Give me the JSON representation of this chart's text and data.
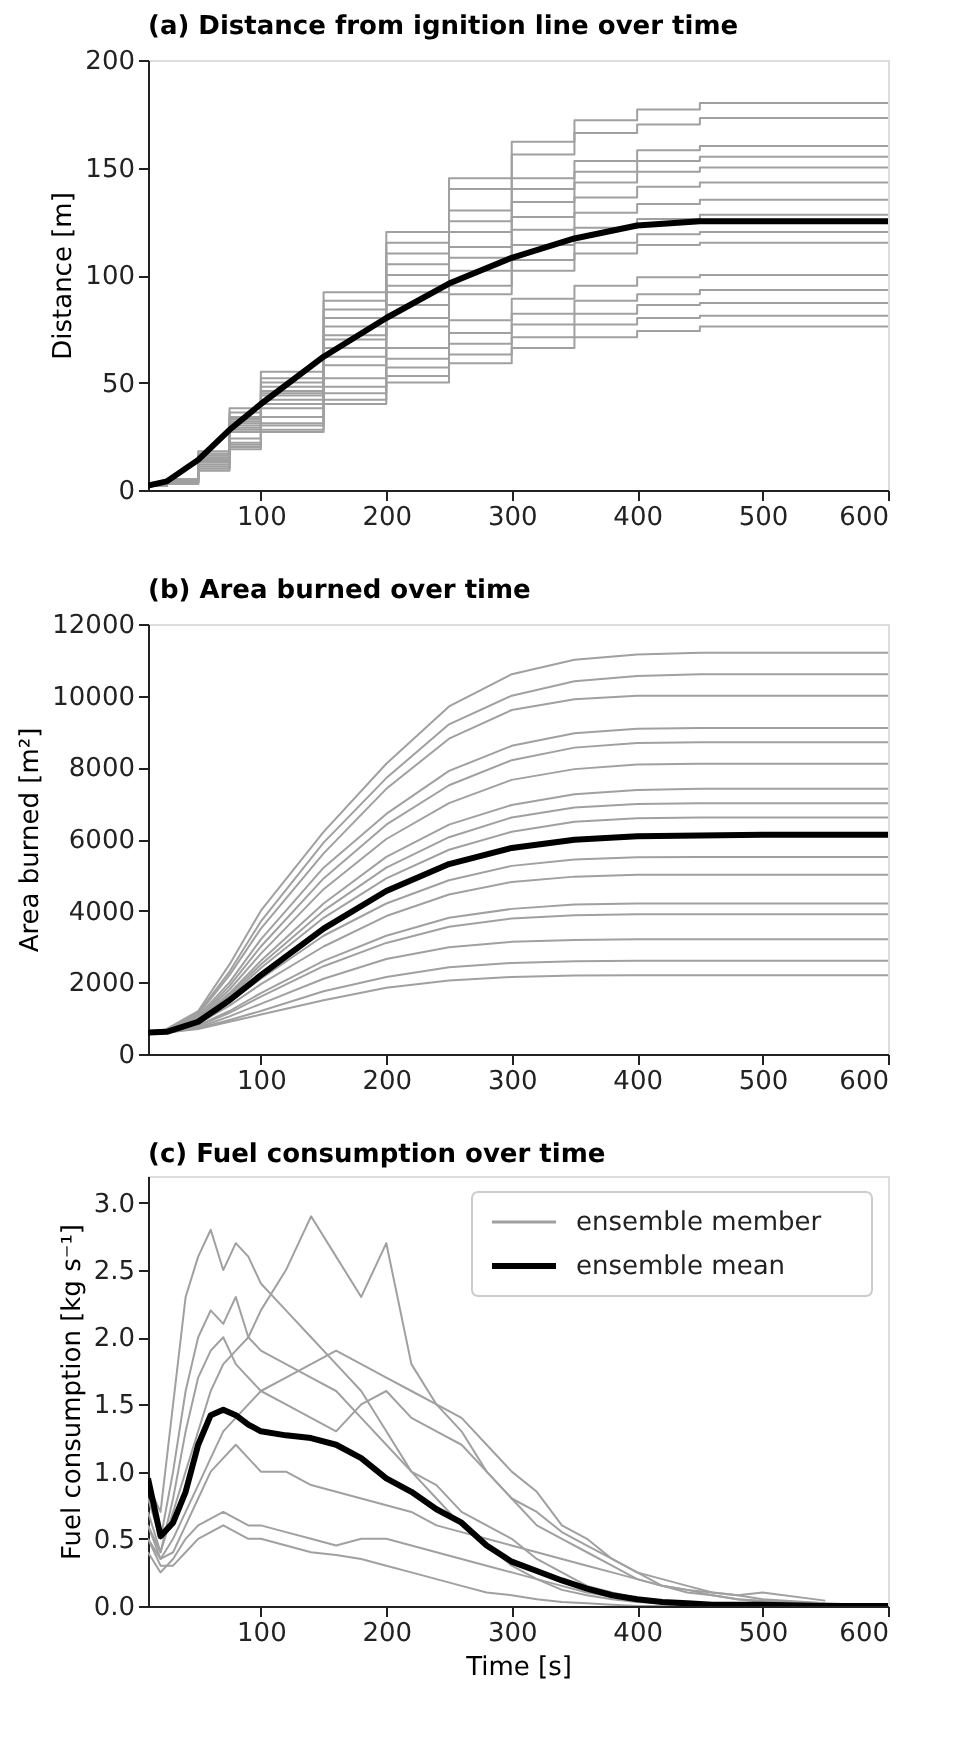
{
  "chart_data": [
    {
      "type": "line",
      "title": "(a) Distance from ignition line over time",
      "ylabel": "Distance [m]",
      "xlim": [
        10,
        600
      ],
      "xticks": [
        100,
        200,
        300,
        400,
        500,
        600
      ],
      "ylim": [
        0,
        200
      ],
      "yticks": [
        0,
        50,
        100,
        150,
        200
      ],
      "grid": false,
      "legend": false,
      "x": [
        10,
        25,
        50,
        75,
        100,
        150,
        200,
        250,
        300,
        350,
        400,
        450,
        500,
        600
      ],
      "series": [
        {
          "type": "step",
          "color": "#a0a0a0",
          "values": [
            2,
            5,
            18,
            38,
            55,
            92,
            120,
            145,
            162,
            172,
            177,
            180,
            180,
            180
          ]
        },
        {
          "type": "step",
          "color": "#a0a0a0",
          "values": [
            2,
            5,
            17,
            36,
            52,
            88,
            115,
            140,
            156,
            166,
            170,
            173,
            173,
            173
          ]
        },
        {
          "type": "step",
          "color": "#a0a0a0",
          "values": [
            2,
            4,
            16,
            34,
            50,
            84,
            110,
            130,
            145,
            153,
            158,
            160,
            160,
            160
          ]
        },
        {
          "type": "step",
          "color": "#a0a0a0",
          "values": [
            2,
            4,
            16,
            33,
            48,
            80,
            105,
            125,
            140,
            148,
            153,
            155,
            155,
            155
          ]
        },
        {
          "type": "step",
          "color": "#a0a0a0",
          "values": [
            2,
            4,
            15,
            32,
            46,
            76,
            100,
            120,
            134,
            143,
            148,
            150,
            150,
            150
          ]
        },
        {
          "type": "step",
          "color": "#a0a0a0",
          "values": [
            2,
            4,
            15,
            31,
            45,
            72,
            95,
            113,
            127,
            136,
            141,
            143,
            143,
            143
          ]
        },
        {
          "type": "step",
          "color": "#a0a0a0",
          "values": [
            2,
            4,
            14,
            30,
            44,
            70,
            92,
            108,
            121,
            129,
            133,
            135,
            135,
            135
          ]
        },
        {
          "type": "step",
          "color": "#a0a0a0",
          "values": [
            2,
            4,
            14,
            29,
            42,
            66,
            86,
            102,
            114,
            122,
            126,
            128,
            128,
            128
          ]
        },
        {
          "type": "step",
          "color": "#a0a0a0",
          "values": [
            2,
            4,
            13,
            28,
            40,
            62,
            80,
            95,
            107,
            115,
            119,
            120,
            120,
            120
          ]
        },
        {
          "type": "step",
          "color": "#a0a0a0",
          "values": [
            2,
            3,
            13,
            27,
            38,
            58,
            76,
            91,
            102,
            110,
            114,
            115,
            115,
            115
          ]
        },
        {
          "type": "step",
          "color": "#a0a0a0",
          "values": [
            2,
            3,
            12,
            24,
            34,
            52,
            66,
            79,
            89,
            95,
            99,
            100,
            100,
            100
          ]
        },
        {
          "type": "step",
          "color": "#a0a0a0",
          "values": [
            2,
            3,
            11,
            22,
            31,
            48,
            61,
            73,
            82,
            88,
            91,
            93,
            93,
            93
          ]
        },
        {
          "type": "step",
          "color": "#a0a0a0",
          "values": [
            2,
            3,
            10,
            21,
            30,
            45,
            57,
            68,
            77,
            82,
            86,
            87,
            87,
            87
          ]
        },
        {
          "type": "step",
          "color": "#a0a0a0",
          "values": [
            2,
            3,
            10,
            20,
            28,
            42,
            53,
            63,
            71,
            77,
            80,
            81,
            81,
            81
          ]
        },
        {
          "type": "step",
          "color": "#a0a0a0",
          "values": [
            2,
            3,
            9,
            19,
            27,
            40,
            50,
            59,
            66,
            71,
            74,
            76,
            76,
            76
          ]
        },
        {
          "type": "line",
          "color": "#000000",
          "values": [
            2,
            4,
            14,
            28,
            40,
            62,
            80,
            96,
            108,
            117,
            123,
            125,
            125,
            125
          ]
        }
      ]
    },
    {
      "type": "line",
      "title": "(b) Area burned over time",
      "ylabel": "Area burned [m²]",
      "xlim": [
        10,
        600
      ],
      "xticks": [
        100,
        200,
        300,
        400,
        500,
        600
      ],
      "ylim": [
        0,
        12000
      ],
      "yticks": [
        0,
        2000,
        4000,
        6000,
        8000,
        10000,
        12000
      ],
      "grid": false,
      "legend": false,
      "x": [
        10,
        25,
        50,
        75,
        100,
        150,
        200,
        250,
        300,
        350,
        400,
        450,
        500,
        600
      ],
      "series": [
        {
          "color": "#a0a0a0",
          "values": [
            600,
            700,
            1200,
            2500,
            4000,
            6200,
            8100,
            9700,
            10600,
            11000,
            11150,
            11200,
            11200,
            11200
          ]
        },
        {
          "color": "#a0a0a0",
          "values": [
            600,
            690,
            1150,
            2300,
            3700,
            5900,
            7700,
            9200,
            10000,
            10400,
            10550,
            10600,
            10600,
            10600
          ]
        },
        {
          "color": "#a0a0a0",
          "values": [
            600,
            680,
            1100,
            2200,
            3500,
            5600,
            7400,
            8800,
            9600,
            9900,
            10000,
            10000,
            10000,
            10000
          ]
        },
        {
          "color": "#a0a0a0",
          "values": [
            600,
            670,
            1050,
            2000,
            3200,
            5200,
            6700,
            7900,
            8600,
            8950,
            9080,
            9100,
            9100,
            9100
          ]
        },
        {
          "color": "#a0a0a0",
          "values": [
            600,
            660,
            1000,
            1900,
            3000,
            4900,
            6400,
            7500,
            8200,
            8550,
            8680,
            8700,
            8700,
            8700
          ]
        },
        {
          "color": "#a0a0a0",
          "values": [
            600,
            650,
            980,
            1800,
            2800,
            4600,
            6000,
            7000,
            7650,
            7950,
            8080,
            8100,
            8100,
            8100
          ]
        },
        {
          "color": "#a0a0a0",
          "values": [
            600,
            640,
            950,
            1700,
            2600,
            4200,
            5500,
            6400,
            6950,
            7250,
            7370,
            7400,
            7400,
            7400
          ]
        },
        {
          "color": "#a0a0a0",
          "values": [
            600,
            640,
            930,
            1650,
            2500,
            4000,
            5200,
            6050,
            6600,
            6880,
            6980,
            7000,
            7000,
            7000
          ]
        },
        {
          "color": "#a0a0a0",
          "values": [
            600,
            630,
            900,
            1600,
            2400,
            3800,
            4900,
            5700,
            6200,
            6480,
            6580,
            6600,
            6600,
            6600
          ]
        },
        {
          "color": "#a0a0a0",
          "values": [
            600,
            620,
            870,
            1450,
            2100,
            3300,
            4200,
            4850,
            5250,
            5430,
            5490,
            5500,
            5500,
            5500
          ]
        },
        {
          "color": "#a0a0a0",
          "values": [
            600,
            620,
            850,
            1350,
            1950,
            3000,
            3850,
            4450,
            4800,
            4950,
            5000,
            5000,
            5000,
            5000
          ]
        },
        {
          "color": "#a0a0a0",
          "values": [
            600,
            610,
            800,
            1200,
            1700,
            2600,
            3300,
            3800,
            4050,
            4170,
            4200,
            4200,
            4200,
            4200
          ]
        },
        {
          "color": "#a0a0a0",
          "values": [
            600,
            610,
            780,
            1150,
            1600,
            2450,
            3100,
            3550,
            3780,
            3870,
            3900,
            3900,
            3900,
            3900
          ]
        },
        {
          "color": "#a0a0a0",
          "values": [
            600,
            600,
            740,
            1050,
            1400,
            2100,
            2650,
            2980,
            3130,
            3180,
            3200,
            3200,
            3200,
            3200
          ]
        },
        {
          "color": "#a0a0a0",
          "values": [
            600,
            600,
            720,
            950,
            1200,
            1750,
            2150,
            2420,
            2540,
            2590,
            2600,
            2600,
            2600,
            2600
          ]
        },
        {
          "color": "#a0a0a0",
          "values": [
            600,
            600,
            700,
            900,
            1100,
            1500,
            1850,
            2050,
            2150,
            2190,
            2200,
            2200,
            2200,
            2200
          ]
        },
        {
          "color": "#000000",
          "values": [
            600,
            620,
            900,
            1500,
            2200,
            3500,
            4550,
            5300,
            5750,
            5980,
            6080,
            6100,
            6120,
            6120
          ]
        }
      ]
    },
    {
      "type": "line",
      "title": "(c) Fuel consumption over time",
      "xlabel": "Time [s]",
      "ylabel": "Fuel consumption [kg s⁻¹]",
      "xlim": [
        10,
        600
      ],
      "xticks": [
        100,
        200,
        300,
        400,
        500,
        600
      ],
      "ylim": [
        0,
        3.2
      ],
      "yticks": [
        {
          "value": 0,
          "label": "0.0"
        },
        0.5,
        {
          "value": 1,
          "label": "1.0"
        },
        1.5,
        {
          "value": 2,
          "label": "2.0"
        },
        2.5,
        {
          "value": 3,
          "label": "3.0"
        }
      ],
      "grid": false,
      "legend": "top right",
      "x": [
        10,
        20,
        30,
        40,
        50,
        60,
        70,
        80,
        90,
        100,
        120,
        140,
        160,
        180,
        200,
        220,
        240,
        260,
        280,
        300,
        320,
        340,
        360,
        380,
        400,
        420,
        440,
        460,
        480,
        500,
        550,
        600
      ],
      "series": [
        {
          "name": "ensemble member",
          "color": "#a0a0a0",
          "values": [
            0.9,
            0.7,
            1.5,
            2.3,
            2.6,
            2.8,
            2.5,
            2.7,
            2.6,
            2.4,
            2.2,
            2.0,
            1.8,
            1.6,
            1.3,
            1.0,
            0.8,
            0.6,
            0.45,
            0.3,
            0.2,
            0.12,
            0.08,
            0.05,
            0.03,
            0.02,
            0.01,
            0.01,
            0,
            0,
            0,
            0
          ]
        },
        {
          "color": "#a0a0a0",
          "values": [
            0.6,
            0.4,
            0.7,
            1.0,
            1.3,
            1.6,
            1.8,
            1.9,
            2.0,
            2.2,
            2.5,
            2.9,
            2.6,
            2.3,
            2.7,
            1.8,
            1.5,
            1.3,
            1.0,
            0.8,
            0.6,
            0.5,
            0.4,
            0.3,
            0.2,
            0.15,
            0.1,
            0.08,
            0.05,
            0.03,
            0.01,
            0
          ]
        },
        {
          "color": "#a0a0a0",
          "values": [
            0.8,
            0.5,
            1.0,
            1.6,
            2.0,
            2.2,
            2.1,
            2.3,
            2.0,
            1.9,
            1.8,
            1.7,
            1.6,
            1.4,
            1.2,
            1.0,
            0.9,
            0.7,
            0.6,
            0.5,
            0.35,
            0.25,
            0.15,
            0.1,
            0.06,
            0.04,
            0.02,
            0.01,
            0,
            0,
            0,
            0
          ]
        },
        {
          "color": "#a0a0a0",
          "values": [
            0.5,
            0.35,
            0.5,
            0.7,
            0.9,
            1.1,
            1.3,
            1.4,
            1.5,
            1.6,
            1.7,
            1.8,
            1.9,
            1.8,
            1.7,
            1.6,
            1.5,
            1.4,
            1.2,
            1.0,
            0.85,
            0.6,
            0.5,
            0.35,
            0.25,
            0.15,
            0.12,
            0.08,
            0.05,
            0.04,
            0.02,
            0
          ]
        },
        {
          "color": "#a0a0a0",
          "values": [
            0.5,
            0.3,
            0.3,
            0.4,
            0.5,
            0.55,
            0.6,
            0.55,
            0.5,
            0.5,
            0.45,
            0.4,
            0.38,
            0.35,
            0.3,
            0.25,
            0.2,
            0.15,
            0.1,
            0.08,
            0.05,
            0.03,
            0.02,
            0.01,
            0,
            0,
            0,
            0,
            0,
            0,
            0,
            0
          ]
        },
        {
          "color": "#a0a0a0",
          "values": [
            0.6,
            0.35,
            0.4,
            0.6,
            0.8,
            1.0,
            1.1,
            1.2,
            1.1,
            1.0,
            1.0,
            0.9,
            0.85,
            0.8,
            0.75,
            0.7,
            0.6,
            0.55,
            0.5,
            0.45,
            0.4,
            0.35,
            0.3,
            0.25,
            0.2,
            0.15,
            0.12,
            0.1,
            0.08,
            0.05,
            0.02,
            null
          ]
        },
        {
          "color": "#a0a0a0",
          "values": [
            0.7,
            0.4,
            0.8,
            1.3,
            1.7,
            1.9,
            2.0,
            1.8,
            1.7,
            1.6,
            1.5,
            1.4,
            1.3,
            1.5,
            1.6,
            1.4,
            1.3,
            1.2,
            1.0,
            0.8,
            0.7,
            0.55,
            0.45,
            0.35,
            0.25,
            0.2,
            0.15,
            0.1,
            0.08,
            0.1,
            0.04,
            null
          ]
        },
        {
          "color": "#a0a0a0",
          "values": [
            0.4,
            0.25,
            0.35,
            0.5,
            0.6,
            0.65,
            0.7,
            0.65,
            0.6,
            0.6,
            0.55,
            0.5,
            0.45,
            0.5,
            0.5,
            0.45,
            0.4,
            0.35,
            0.3,
            0.25,
            0.2,
            0.15,
            0.1,
            0.07,
            0.05,
            0.03,
            0.02,
            0.01,
            0.01,
            0,
            0,
            0
          ]
        },
        {
          "name": "ensemble mean",
          "color": "#000000",
          "values": [
            0.95,
            0.52,
            0.62,
            0.85,
            1.2,
            1.42,
            1.46,
            1.42,
            1.35,
            1.3,
            1.27,
            1.25,
            1.2,
            1.1,
            0.95,
            0.85,
            0.72,
            0.62,
            0.45,
            0.33,
            0.26,
            0.19,
            0.13,
            0.08,
            0.05,
            0.03,
            0.02,
            0.01,
            0.01,
            0.01,
            0,
            0
          ]
        }
      ]
    }
  ]
}
